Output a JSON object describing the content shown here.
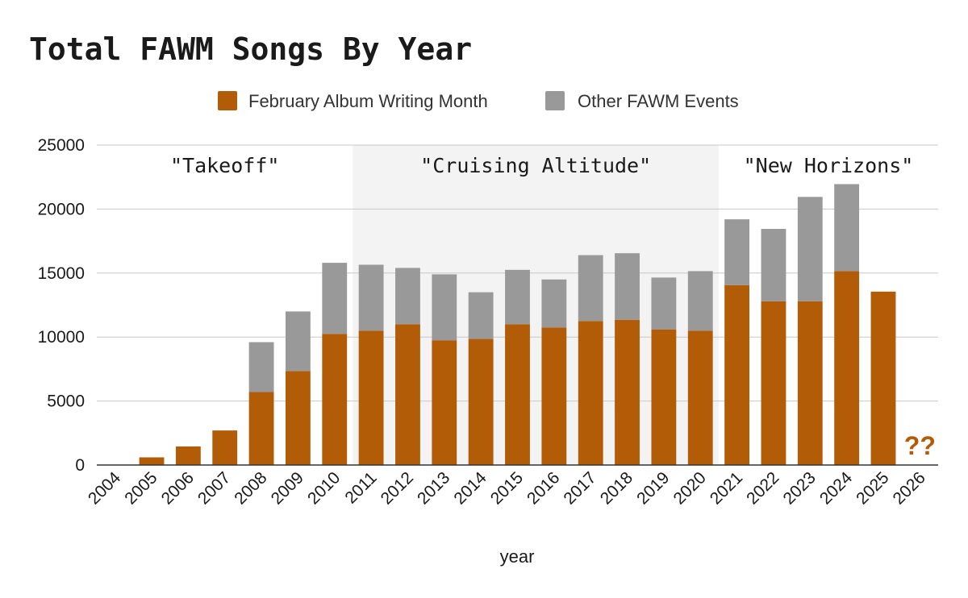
{
  "chart_data": {
    "type": "bar",
    "stacked": true,
    "title": "Total FAWM Songs By Year",
    "xlabel": "year",
    "ylabel": "",
    "ylim": [
      0,
      25000
    ],
    "yticks": [
      0,
      5000,
      10000,
      15000,
      20000,
      25000
    ],
    "grid": true,
    "legend_position": "top",
    "categories": [
      "2004",
      "2005",
      "2006",
      "2007",
      "2008",
      "2009",
      "2010",
      "2011",
      "2012",
      "2013",
      "2014",
      "2015",
      "2016",
      "2017",
      "2018",
      "2019",
      "2020",
      "2021",
      "2022",
      "2023",
      "2024",
      "2025",
      "2026"
    ],
    "series": [
      {
        "name": "February Album Writing Month",
        "color": "#b35c07",
        "values": [
          0,
          600,
          1450,
          2700,
          5700,
          7350,
          10250,
          10500,
          11000,
          9750,
          9850,
          11000,
          10750,
          11250,
          11350,
          10600,
          10500,
          14050,
          12800,
          12800,
          15150,
          13550,
          0
        ]
      },
      {
        "name": "Other FAWM Events",
        "color": "#999999",
        "values": [
          0,
          0,
          0,
          0,
          3900,
          4650,
          5550,
          5150,
          4400,
          5150,
          3650,
          4250,
          3750,
          5150,
          5200,
          4050,
          4650,
          5150,
          5650,
          8150,
          6800,
          0,
          0
        ]
      }
    ],
    "annotations": [
      {
        "text": "\"Takeoff\"",
        "from": "2004",
        "to": "2010",
        "shaded": false
      },
      {
        "text": "\"Cruising Altitude\"",
        "from": "2011",
        "to": "2020",
        "shaded": true
      },
      {
        "text": "\"New Horizons\"",
        "from": "2021",
        "to": "2026",
        "shaded": false
      }
    ],
    "marker": {
      "text": "??",
      "at": "2026",
      "color": "#b35c07"
    }
  }
}
